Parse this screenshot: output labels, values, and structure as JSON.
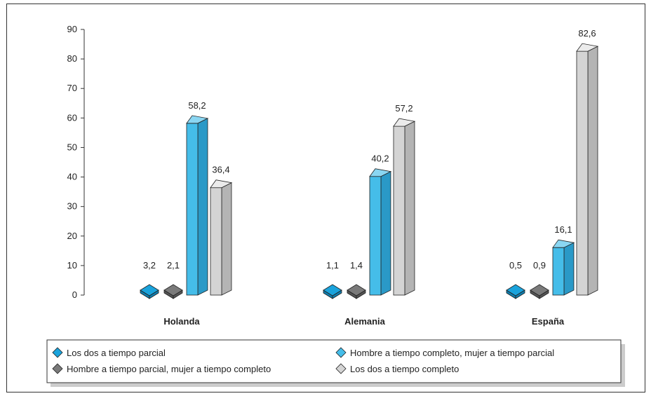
{
  "chart_data": {
    "type": "bar",
    "categories": [
      "Holanda",
      "Alemania",
      "España"
    ],
    "series": [
      {
        "name": "Los dos a tiempo parcial",
        "values": [
          3.2,
          1.1,
          0.5
        ]
      },
      {
        "name": "Hombre a tiempo parcial, mujer a tiempo completo",
        "values": [
          2.1,
          1.4,
          0.9
        ]
      },
      {
        "name": "Hombre a tiempo completo, mujer a tiempo parcial",
        "values": [
          58.2,
          40.2,
          16.1
        ]
      },
      {
        "name": "Los dos a tiempo completo",
        "values": [
          36.4,
          57.2,
          82.6
        ]
      }
    ],
    "data_labels": [
      [
        "3,2",
        "1,1",
        "0,5"
      ],
      [
        "2,1",
        "1,4",
        "0,9"
      ],
      [
        "58,2",
        "40,2",
        "16,1"
      ],
      [
        "36,4",
        "57,2",
        "82,6"
      ]
    ],
    "ylim": [
      0,
      90
    ],
    "yticks": [
      "0",
      "10",
      "20",
      "30",
      "40",
      "50",
      "60",
      "70",
      "80",
      "90"
    ],
    "grid": false,
    "legend_placement": "bottom",
    "colors": {
      "series": [
        "#1aa3dc",
        "#7a7a7a",
        "#45bde9",
        "#d4d4d4"
      ],
      "series_top": [
        "#5ec6ee",
        "#a2a2a2",
        "#8ad6f2",
        "#ebebeb"
      ],
      "series_side": [
        "#0f7fb0",
        "#555555",
        "#2a99c7",
        "#b4b4b4"
      ],
      "outline": "#222222"
    }
  }
}
